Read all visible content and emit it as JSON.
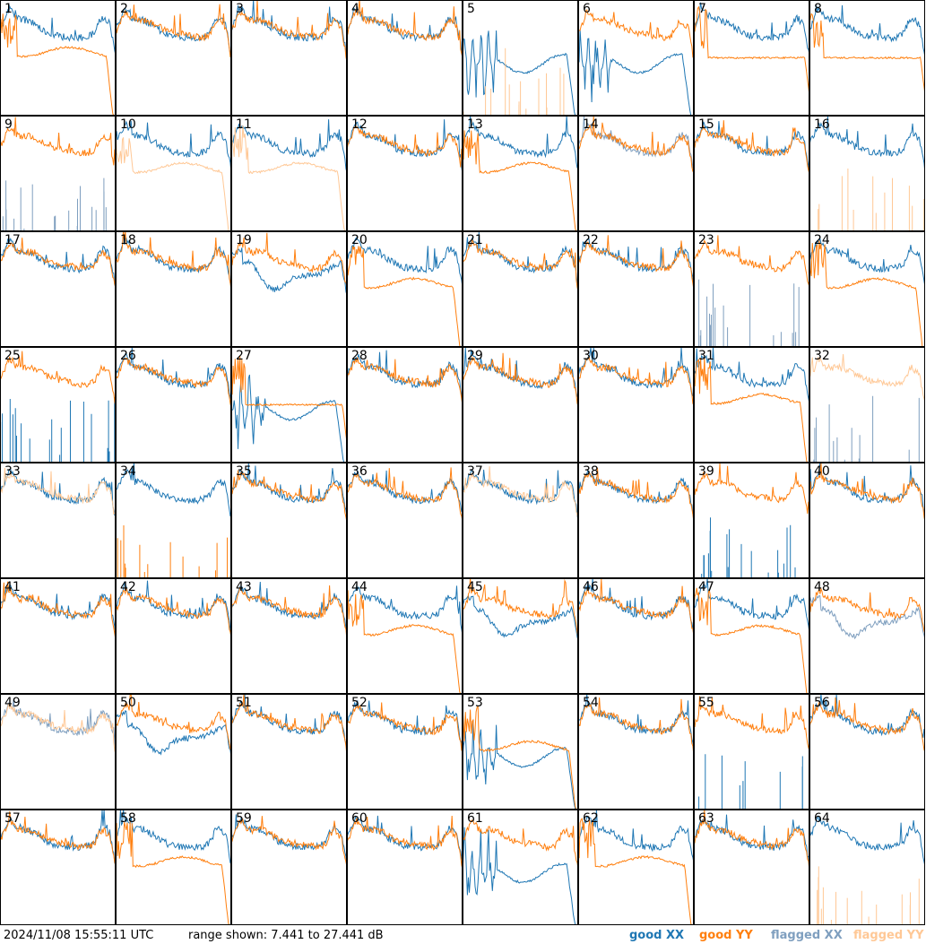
{
  "footer": {
    "timestamp": "2024/11/08 15:55:11 UTC",
    "range": "range shown: 7.441 to 27.441 dB"
  },
  "legend": [
    {
      "text": "good XX",
      "color": "#1f77b4"
    },
    {
      "text": "good YY",
      "color": "#ff7f0e"
    },
    {
      "text": "flagged XX",
      "color": "#7f9fbf"
    },
    {
      "text": "flagged YY",
      "color": "#ffc896"
    }
  ],
  "chart_data": {
    "type": "line",
    "layout": "small-multiples 8x8",
    "ylim": [
      7.441,
      27.441
    ],
    "yunit": "dB",
    "series_names": [
      "good XX",
      "good YY",
      "flagged XX",
      "flagged YY"
    ],
    "panels": [
      {
        "label": "1",
        "xx": "normal",
        "yy": "rolloff",
        "xx_flag": false,
        "yy_flag": false
      },
      {
        "label": "2",
        "xx": "normal",
        "yy": "normal",
        "xx_flag": false,
        "yy_flag": false
      },
      {
        "label": "3",
        "xx": "normal",
        "yy": "normal",
        "xx_flag": false,
        "yy_flag": false
      },
      {
        "label": "4",
        "xx": "normal",
        "yy": "normal",
        "xx_flag": false,
        "yy_flag": false
      },
      {
        "label": "5",
        "xx": "wave",
        "yy": "spikes",
        "xx_flag": false,
        "yy_flag": true
      },
      {
        "label": "6",
        "xx": "wave",
        "yy": "normal",
        "xx_flag": false,
        "yy_flag": false
      },
      {
        "label": "7",
        "xx": "normal",
        "yy": "flat",
        "xx_flag": false,
        "yy_flag": false
      },
      {
        "label": "8",
        "xx": "normal",
        "yy": "flat",
        "xx_flag": false,
        "yy_flag": false
      },
      {
        "label": "9",
        "xx": "spikes",
        "yy": "normal",
        "xx_flag": true,
        "yy_flag": false
      },
      {
        "label": "10",
        "xx": "normal",
        "yy": "rolloff",
        "xx_flag": false,
        "yy_flag": true
      },
      {
        "label": "11",
        "xx": "normal",
        "yy": "rolloff",
        "xx_flag": false,
        "yy_flag": true
      },
      {
        "label": "12",
        "xx": "normal",
        "yy": "normal",
        "xx_flag": false,
        "yy_flag": false
      },
      {
        "label": "13",
        "xx": "normal",
        "yy": "rolloff",
        "xx_flag": false,
        "yy_flag": false
      },
      {
        "label": "14",
        "xx": "normal",
        "yy": "normal",
        "xx_flag": true,
        "yy_flag": false
      },
      {
        "label": "15",
        "xx": "normal",
        "yy": "normal",
        "xx_flag": false,
        "yy_flag": false
      },
      {
        "label": "16",
        "xx": "normal",
        "yy": "spikes",
        "xx_flag": false,
        "yy_flag": true
      },
      {
        "label": "17",
        "xx": "normal",
        "yy": "normal",
        "xx_flag": false,
        "yy_flag": false
      },
      {
        "label": "18",
        "xx": "normal",
        "yy": "normal",
        "xx_flag": false,
        "yy_flag": false
      },
      {
        "label": "19",
        "xx": "deep",
        "yy": "normal",
        "xx_flag": false,
        "yy_flag": false
      },
      {
        "label": "20",
        "xx": "normal",
        "yy": "rolloff",
        "xx_flag": false,
        "yy_flag": false
      },
      {
        "label": "21",
        "xx": "normal",
        "yy": "normal",
        "xx_flag": false,
        "yy_flag": false
      },
      {
        "label": "22",
        "xx": "normal",
        "yy": "normal",
        "xx_flag": false,
        "yy_flag": false
      },
      {
        "label": "23",
        "xx": "spikes",
        "yy": "normal",
        "xx_flag": true,
        "yy_flag": false
      },
      {
        "label": "24",
        "xx": "normal",
        "yy": "rolloff",
        "xx_flag": false,
        "yy_flag": false
      },
      {
        "label": "25",
        "xx": "spikes",
        "yy": "normal",
        "xx_flag": false,
        "yy_flag": false
      },
      {
        "label": "26",
        "xx": "normal",
        "yy": "normal",
        "xx_flag": false,
        "yy_flag": false
      },
      {
        "label": "27",
        "xx": "wave",
        "yy": "flat",
        "xx_flag": false,
        "yy_flag": false
      },
      {
        "label": "28",
        "xx": "normal",
        "yy": "normal",
        "xx_flag": false,
        "yy_flag": false
      },
      {
        "label": "29",
        "xx": "normal",
        "yy": "normal",
        "xx_flag": false,
        "yy_flag": false
      },
      {
        "label": "30",
        "xx": "normal",
        "yy": "normal",
        "xx_flag": false,
        "yy_flag": false
      },
      {
        "label": "31",
        "xx": "normal",
        "yy": "rolloff",
        "xx_flag": false,
        "yy_flag": false
      },
      {
        "label": "32",
        "xx": "spikes",
        "yy": "normal",
        "xx_flag": true,
        "yy_flag": true
      },
      {
        "label": "33",
        "xx": "normal",
        "yy": "normal",
        "xx_flag": false,
        "yy_flag": true
      },
      {
        "label": "34",
        "xx": "normal",
        "yy": "spikes",
        "xx_flag": false,
        "yy_flag": false
      },
      {
        "label": "35",
        "xx": "normal",
        "yy": "normal",
        "xx_flag": false,
        "yy_flag": false
      },
      {
        "label": "36",
        "xx": "normal",
        "yy": "normal",
        "xx_flag": false,
        "yy_flag": false
      },
      {
        "label": "37",
        "xx": "normal",
        "yy": "normal",
        "xx_flag": false,
        "yy_flag": true
      },
      {
        "label": "38",
        "xx": "normal",
        "yy": "normal",
        "xx_flag": false,
        "yy_flag": false
      },
      {
        "label": "39",
        "xx": "spikes",
        "yy": "normal",
        "xx_flag": false,
        "yy_flag": false
      },
      {
        "label": "40",
        "xx": "normal",
        "yy": "normal",
        "xx_flag": false,
        "yy_flag": false
      },
      {
        "label": "41",
        "xx": "normal",
        "yy": "normal",
        "xx_flag": false,
        "yy_flag": false
      },
      {
        "label": "42",
        "xx": "normal",
        "yy": "normal",
        "xx_flag": false,
        "yy_flag": false
      },
      {
        "label": "43",
        "xx": "normal",
        "yy": "normal",
        "xx_flag": false,
        "yy_flag": false
      },
      {
        "label": "44",
        "xx": "normal",
        "yy": "rolloff",
        "xx_flag": false,
        "yy_flag": false
      },
      {
        "label": "45",
        "xx": "deep",
        "yy": "normal",
        "xx_flag": false,
        "yy_flag": false
      },
      {
        "label": "46",
        "xx": "normal",
        "yy": "normal",
        "xx_flag": false,
        "yy_flag": false
      },
      {
        "label": "47",
        "xx": "normal",
        "yy": "rolloff",
        "xx_flag": false,
        "yy_flag": false
      },
      {
        "label": "48",
        "xx": "deep",
        "yy": "normal",
        "xx_flag": true,
        "yy_flag": false
      },
      {
        "label": "49",
        "xx": "normal",
        "yy": "normal",
        "xx_flag": true,
        "yy_flag": true
      },
      {
        "label": "50",
        "xx": "deep",
        "yy": "normal",
        "xx_flag": false,
        "yy_flag": false
      },
      {
        "label": "51",
        "xx": "normal",
        "yy": "normal",
        "xx_flag": false,
        "yy_flag": false
      },
      {
        "label": "52",
        "xx": "normal",
        "yy": "normal",
        "xx_flag": false,
        "yy_flag": false
      },
      {
        "label": "53",
        "xx": "wave",
        "yy": "rolloff",
        "xx_flag": false,
        "yy_flag": false
      },
      {
        "label": "54",
        "xx": "normal",
        "yy": "normal",
        "xx_flag": false,
        "yy_flag": false
      },
      {
        "label": "55",
        "xx": "spikes",
        "yy": "normal",
        "xx_flag": false,
        "yy_flag": false
      },
      {
        "label": "56",
        "xx": "normal",
        "yy": "normal",
        "xx_flag": false,
        "yy_flag": false
      },
      {
        "label": "57",
        "xx": "normal",
        "yy": "normal",
        "xx_flag": false,
        "yy_flag": false
      },
      {
        "label": "58",
        "xx": "normal",
        "yy": "rolloff",
        "xx_flag": false,
        "yy_flag": false
      },
      {
        "label": "59",
        "xx": "normal",
        "yy": "normal",
        "xx_flag": false,
        "yy_flag": false
      },
      {
        "label": "60",
        "xx": "normal",
        "yy": "normal",
        "xx_flag": false,
        "yy_flag": false
      },
      {
        "label": "61",
        "xx": "wave",
        "yy": "normal",
        "xx_flag": false,
        "yy_flag": false
      },
      {
        "label": "62",
        "xx": "normal",
        "yy": "rolloff",
        "xx_flag": false,
        "yy_flag": false
      },
      {
        "label": "63",
        "xx": "normal",
        "yy": "normal",
        "xx_flag": false,
        "yy_flag": false
      },
      {
        "label": "64",
        "xx": "normal",
        "yy": "spikes",
        "xx_flag": false,
        "yy_flag": true
      }
    ]
  }
}
